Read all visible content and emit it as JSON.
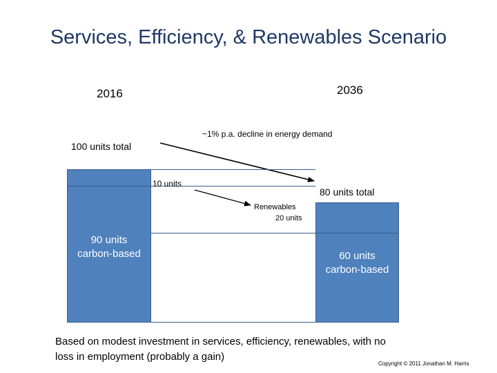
{
  "title": "Services, Efficiency, & Renewables Scenario",
  "year_left": "2016",
  "year_right": "2036",
  "left_total": "100 units total",
  "decline_label": "~1% p.a. decline in energy demand",
  "efficiency_label": "10 units",
  "right_total": "80 units total",
  "renewables_label": "Renewables",
  "renewables_units": "20 units",
  "left_carbon": {
    "line1": "90 units",
    "line2": "carbon-based"
  },
  "right_carbon": {
    "line1": "60 units",
    "line2": "carbon-based"
  },
  "footer": {
    "line1": "Based on modest investment in services, efficiency, renewables, with no",
    "line2": "loss in employment (probably a gain)"
  },
  "copyright": "Copyright © 2011 Jonathan M. Harris",
  "colors": {
    "title": "#1f3864",
    "bar_fill": "#4f81bd",
    "bar_border": "#385d8a"
  }
}
